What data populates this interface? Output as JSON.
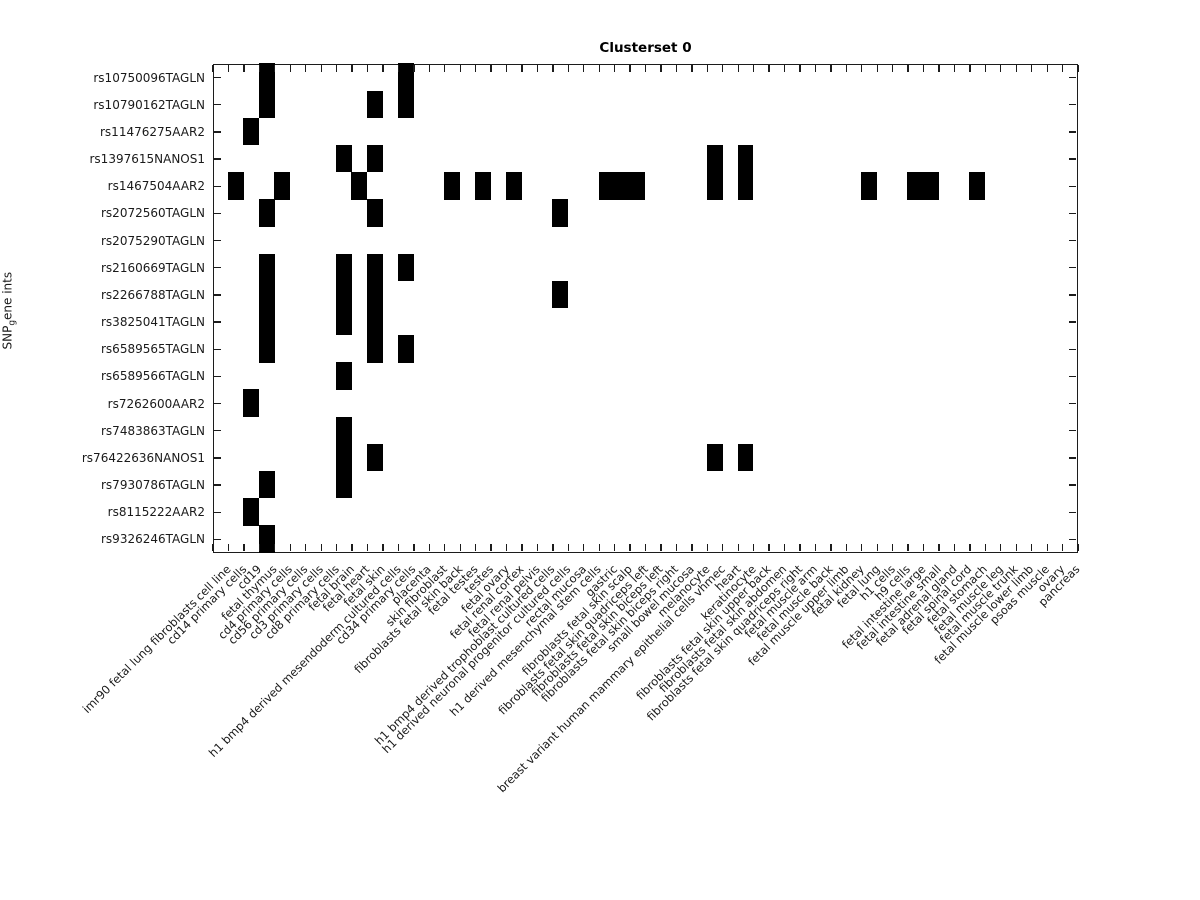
{
  "title": "Clusterset 0",
  "y_axis": {
    "label_pre": "SNP",
    "label_sub": "g",
    "label_post": "ene ints"
  },
  "chart_data": {
    "type": "heatmap",
    "title": "Clusterset 0",
    "ylabel": "SNP_gene ints",
    "value_meaning": "binary presence (black = 1, white = 0)",
    "cell_color": "#000000",
    "background_color": "#ffffff",
    "grid": false,
    "rows": [
      "rs10750096TAGLN",
      "rs10790162TAGLN",
      "rs11476275AAR2",
      "rs1397615NANOS1",
      "rs1467504AAR2",
      "rs2072560TAGLN",
      "rs2075290TAGLN",
      "rs2160669TAGLN",
      "rs2266788TAGLN",
      "rs3825041TAGLN",
      "rs6589565TAGLN",
      "rs6589566TAGLN",
      "rs7262600AAR2",
      "rs7483863TAGLN",
      "rs76422636NANOS1",
      "rs7930786TAGLN",
      "rs8115222AAR2",
      "rs9326246TAGLN"
    ],
    "columns": [
      "imr90 fetal lung fibroblasts cell line",
      "cd14 primary cells",
      "cd19",
      "fetal thymus",
      "cd4 primary cells",
      "cd56 primary cells",
      "cd3 primary cells",
      "cd8 primary cells",
      "fetal brain",
      "fetal heart",
      "fetal skin",
      "h1 bmp4 derived mesendoderm cultured cells",
      "cd34 primary cells",
      "placenta",
      "skin fibroblast",
      "fibroblasts fetal skin back",
      "fetal testes",
      "testes",
      "fetal ovary",
      "fetal renal cortex",
      "fetal renal pelvis",
      "h1 bmp4 derived trophoblast cultured cells",
      "h1 derived neuronal progenitor cultured cells",
      "rectal mucosa",
      "h1 derived mesenchymal stem cells",
      "gastric",
      "fibroblasts fetal skin scalp",
      "fibroblasts fetal skin quadriceps left",
      "fibroblasts fetal skin biceps left",
      "fibroblasts fetal skin biceps right",
      "small bowel mucosa",
      "melanocyte",
      "breast variant human mammary epithelial cells vhmec",
      "heart",
      "keratinocyte",
      "fibroblasts fetal skin upper back",
      "fibroblasts fetal skin abdomen",
      "fibroblasts fetal skin quadriceps right",
      "fetal muscle arm",
      "fetal muscle back",
      "fetal muscle upper limb",
      "fetal kidney",
      "fetal lung",
      "h1 cells",
      "h9 cells",
      "fetal intestine large",
      "fetal intestine small",
      "fetal adrenal gland",
      "fetal spinal cord",
      "fetal stomach",
      "fetal muscle leg",
      "fetal muscle trunk",
      "fetal muscle lower limb",
      "psoas muscle",
      "ovary",
      "pancreas"
    ],
    "cells_row_col": [
      [
        1,
        4
      ],
      [
        1,
        13
      ],
      [
        2,
        4
      ],
      [
        2,
        11
      ],
      [
        2,
        13
      ],
      [
        3,
        3
      ],
      [
        4,
        9
      ],
      [
        4,
        11
      ],
      [
        4,
        33
      ],
      [
        4,
        35
      ],
      [
        5,
        2
      ],
      [
        5,
        5
      ],
      [
        5,
        10
      ],
      [
        5,
        16
      ],
      [
        5,
        18
      ],
      [
        5,
        20
      ],
      [
        5,
        26
      ],
      [
        5,
        27
      ],
      [
        5,
        28
      ],
      [
        5,
        33
      ],
      [
        5,
        35
      ],
      [
        5,
        43
      ],
      [
        5,
        46
      ],
      [
        5,
        47
      ],
      [
        5,
        50
      ],
      [
        6,
        4
      ],
      [
        6,
        11
      ],
      [
        6,
        23
      ],
      [
        8,
        4
      ],
      [
        8,
        9
      ],
      [
        8,
        11
      ],
      [
        8,
        13
      ],
      [
        9,
        4
      ],
      [
        9,
        9
      ],
      [
        9,
        11
      ],
      [
        9,
        23
      ],
      [
        10,
        4
      ],
      [
        10,
        9
      ],
      [
        10,
        11
      ],
      [
        11,
        4
      ],
      [
        11,
        11
      ],
      [
        11,
        13
      ],
      [
        12,
        9
      ],
      [
        13,
        3
      ],
      [
        14,
        9
      ],
      [
        15,
        9
      ],
      [
        15,
        11
      ],
      [
        15,
        33
      ],
      [
        15,
        35
      ],
      [
        16,
        4
      ],
      [
        16,
        9
      ],
      [
        17,
        3
      ],
      [
        18,
        4
      ]
    ]
  }
}
